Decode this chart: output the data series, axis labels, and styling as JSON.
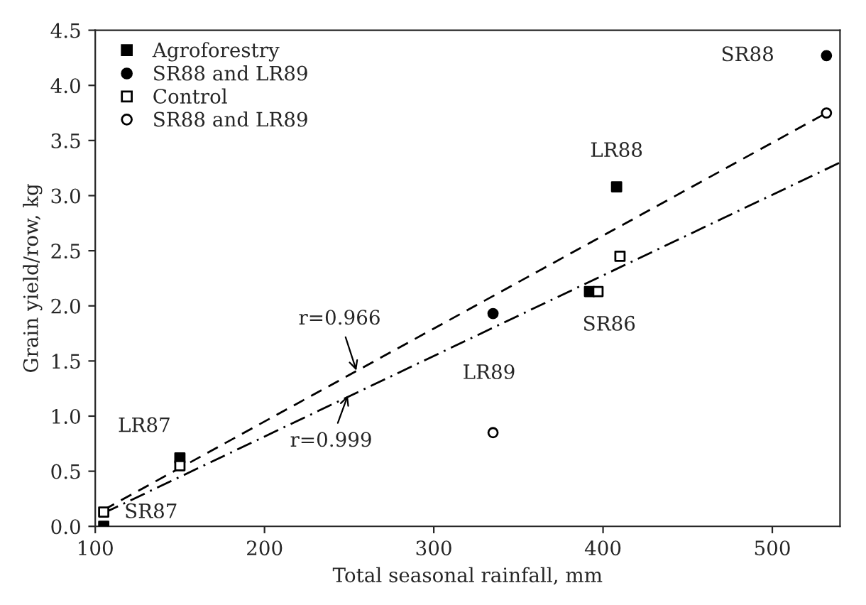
{
  "chart_data": {
    "type": "scatter",
    "xlabel": "Total seasonal rainfall, mm",
    "ylabel": "Grain yield/row, kg",
    "xlim": [
      100,
      540
    ],
    "ylim": [
      0,
      4.5
    ],
    "xticks": [
      100,
      200,
      300,
      400,
      500
    ],
    "yticks": [
      {
        "value": 0,
        "label": "0.0"
      },
      {
        "value": 0.5,
        "label": "0.5"
      },
      {
        "value": 1,
        "label": "1.0"
      },
      {
        "value": 1.5,
        "label": "1.5"
      },
      {
        "value": 2,
        "label": "2.0"
      },
      {
        "value": 2.5,
        "label": "2.5"
      },
      {
        "value": 3,
        "label": "3.0"
      },
      {
        "value": 3.5,
        "label": "3.5"
      },
      {
        "value": 4,
        "label": "4.0"
      },
      {
        "value": 4.5,
        "label": "4.5"
      }
    ],
    "grid": false,
    "legend": "top left",
    "series": [
      {
        "name": "Agroforestry",
        "marker": "square",
        "color": "#000000",
        "x": [
          105,
          150,
          392,
          408
        ],
        "values": [
          0.0,
          0.62,
          2.13,
          3.08
        ]
      },
      {
        "name": "SR88 and LR89",
        "marker": "circle",
        "color": "#000000",
        "x": [
          335,
          532
        ],
        "values": [
          1.93,
          4.27
        ]
      },
      {
        "name": "Control",
        "marker": "square",
        "color": "#ffffff",
        "x": [
          105,
          150,
          397,
          410
        ],
        "values": [
          0.13,
          0.55,
          2.13,
          2.45
        ]
      },
      {
        "name": "SR88 and LR89",
        "marker": "circle",
        "color": "#ffffff",
        "x": [
          335,
          532
        ],
        "values": [
          0.85,
          3.75
        ]
      },
      {
        "type": "line",
        "line_style": "dashed",
        "color": "#000000",
        "x": [
          105,
          532
        ],
        "values": [
          0.15,
          3.75
        ]
      },
      {
        "type": "line",
        "line_style": "dashdot",
        "color": "#000000",
        "x": [
          105,
          540
        ],
        "values": [
          0.12,
          3.3
        ]
      }
    ],
    "annotations": [
      {
        "text": "r=0.966",
        "x": 255,
        "y": 1.38
      },
      {
        "text": "r=0.999",
        "x": 250,
        "y": 1.22
      },
      {
        "text": "LR87",
        "x": 150,
        "y": 0.62
      },
      {
        "text": "SR87",
        "x": 105,
        "y": 0.0
      },
      {
        "text": "SR88",
        "x": 532,
        "y": 4.27
      },
      {
        "text": "LR88",
        "x": 408,
        "y": 3.08
      },
      {
        "text": "SR86",
        "x": 392,
        "y": 2.13
      },
      {
        "text": "LR89",
        "x": 335,
        "y": 0.85
      }
    ]
  }
}
